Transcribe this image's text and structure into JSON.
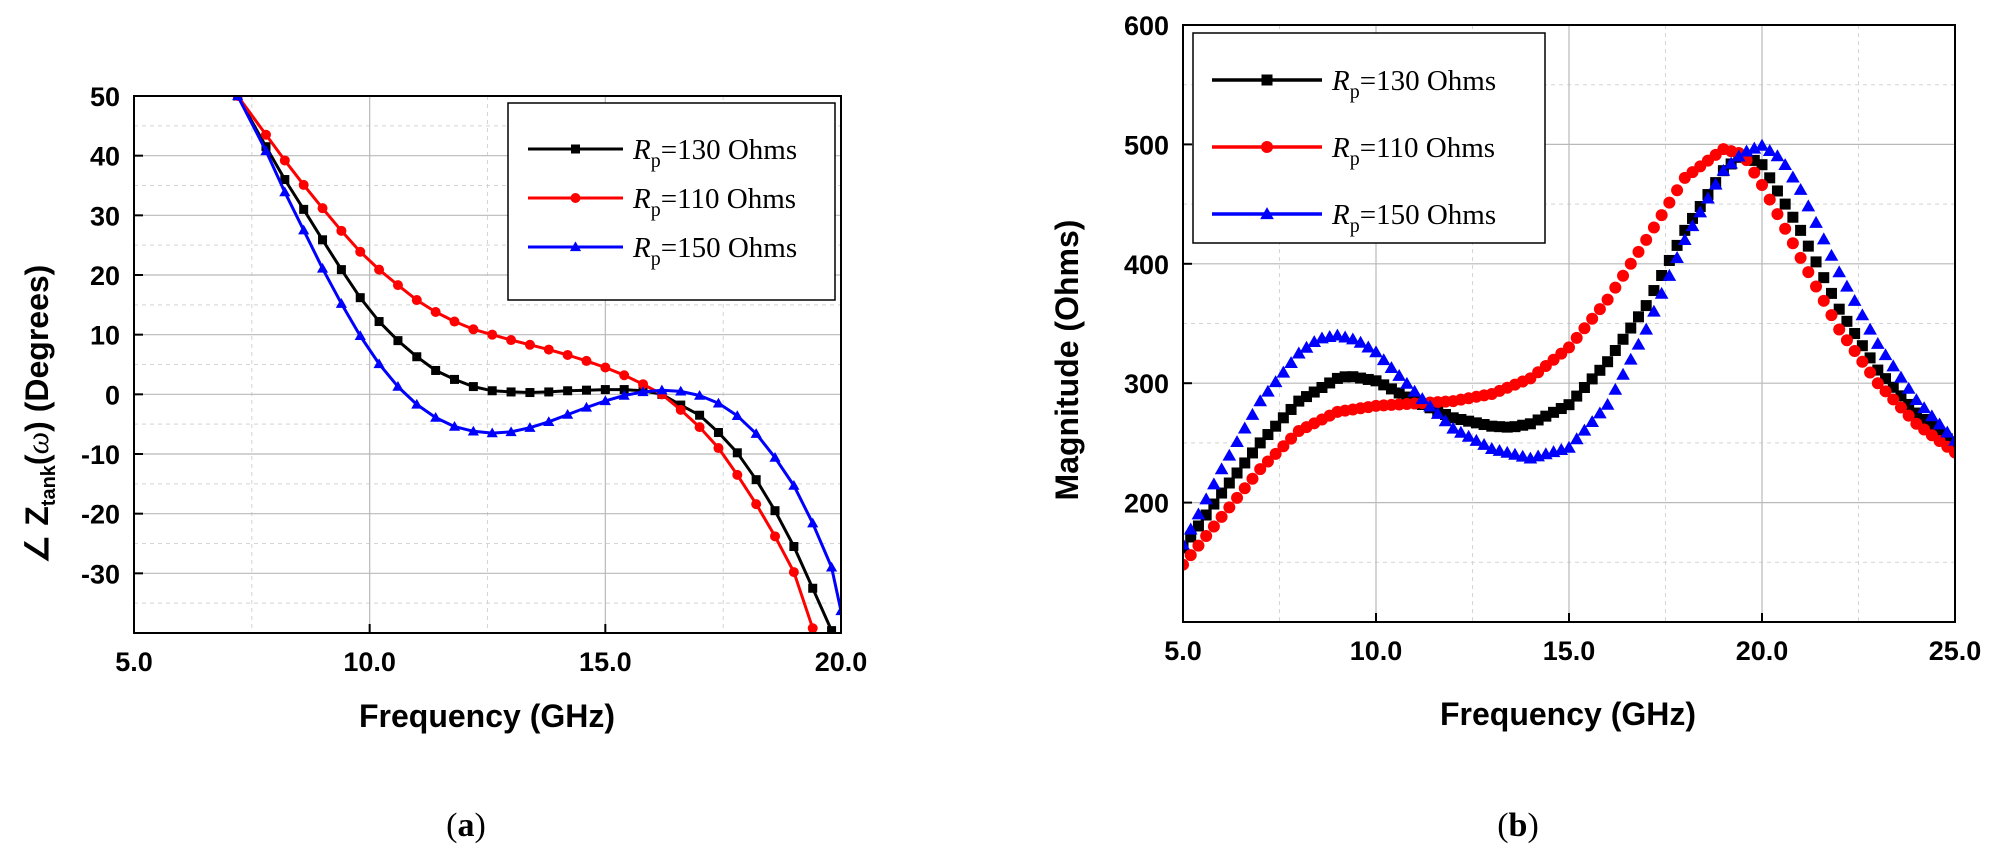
{
  "chart_data": [
    {
      "type": "line",
      "panel_label": "a",
      "xlabel": "Frequency (GHz)",
      "ylabel": {
        "prefix": "∠ Z",
        "sub": "tank",
        "paren_open": "(",
        "omega": "ω",
        "paren_close": ")",
        "suffix": " (Degrees)"
      },
      "xlim": [
        5.0,
        20.0
      ],
      "ylim": [
        -40,
        50
      ],
      "xticks": [
        5.0,
        10.0,
        15.0,
        20.0
      ],
      "xtick_labels": [
        "5.0",
        "10.0",
        "15.0",
        "20.0"
      ],
      "yticks": [
        -30,
        -20,
        -10,
        0,
        10,
        20,
        30,
        40,
        50
      ],
      "ytick_labels": [
        "-30",
        "-20",
        "-10",
        "0",
        "10",
        "20",
        "30",
        "40",
        "50"
      ],
      "grid": true,
      "legend_position": "top-right",
      "series": [
        {
          "name": "R_p=130 Ohms",
          "label_main": "R",
          "label_sub": "p",
          "label_rest": "=130 Ohms",
          "color": "#000000",
          "marker": "square",
          "x": [
            7.2,
            7.8,
            8.2,
            8.6,
            9.0,
            9.4,
            9.8,
            10.2,
            10.6,
            11.0,
            11.4,
            11.8,
            12.2,
            12.6,
            13.0,
            13.4,
            13.8,
            14.2,
            14.6,
            15.0,
            15.4,
            15.8,
            16.2,
            16.6,
            17.0,
            17.4,
            17.8,
            18.2,
            18.6,
            19.0,
            19.4,
            19.8
          ],
          "y": [
            50,
            41.5,
            36,
            31,
            25.9,
            20.9,
            16.2,
            12.2,
            9.0,
            6.3,
            4.0,
            2.5,
            1.3,
            0.6,
            0.4,
            0.3,
            0.4,
            0.6,
            0.7,
            0.8,
            0.8,
            0.6,
            0.0,
            -1.8,
            -3.5,
            -6.4,
            -9.8,
            -14.3,
            -19.5,
            -25.5,
            -32.5,
            -39.6
          ]
        },
        {
          "name": "R_p=110 Ohms",
          "label_main": "R",
          "label_sub": "p",
          "label_rest": "=110 Ohms",
          "color": "#ff0000",
          "marker": "circle",
          "x": [
            7.2,
            7.8,
            8.2,
            8.6,
            9.0,
            9.4,
            9.8,
            10.2,
            10.6,
            11.0,
            11.4,
            11.8,
            12.2,
            12.6,
            13.0,
            13.4,
            13.8,
            14.2,
            14.6,
            15.0,
            15.4,
            15.8,
            16.2,
            16.6,
            17.0,
            17.4,
            17.8,
            18.2,
            18.6,
            19.0,
            19.4
          ],
          "y": [
            50,
            43.5,
            39.2,
            35.1,
            31.2,
            27.4,
            23.9,
            20.9,
            18.3,
            15.8,
            13.8,
            12.2,
            10.9,
            10.0,
            9.1,
            8.3,
            7.5,
            6.6,
            5.6,
            4.5,
            3.2,
            1.7,
            0.0,
            -2.6,
            -5.5,
            -9.0,
            -13.5,
            -18.4,
            -23.8,
            -29.8,
            -39.2
          ]
        },
        {
          "name": "R_p=150 Ohms",
          "label_main": "R",
          "label_sub": "p",
          "label_rest": "=150 Ohms",
          "color": "#0000ff",
          "marker": "triangle",
          "x": [
            7.2,
            7.8,
            8.2,
            8.6,
            9.0,
            9.4,
            9.8,
            10.2,
            10.6,
            11.0,
            11.4,
            11.8,
            12.2,
            12.6,
            13.0,
            13.4,
            13.8,
            14.2,
            14.6,
            15.0,
            15.4,
            15.8,
            16.2,
            16.6,
            17.0,
            17.4,
            17.8,
            18.2,
            18.6,
            19.0,
            19.4,
            19.8,
            20.0
          ],
          "y": [
            50,
            40.8,
            33.9,
            27.5,
            21.1,
            15.2,
            9.8,
            5.1,
            1.3,
            -1.7,
            -3.9,
            -5.4,
            -6.2,
            -6.5,
            -6.3,
            -5.6,
            -4.6,
            -3.4,
            -2.2,
            -1.1,
            -0.2,
            0.4,
            0.7,
            0.5,
            -0.2,
            -1.5,
            -3.6,
            -6.6,
            -10.6,
            -15.3,
            -21.6,
            -29.0,
            -36.3
          ]
        }
      ]
    },
    {
      "type": "scatter",
      "panel_label": "b",
      "xlabel": "Frequency (GHz)",
      "ylabel": "Magnitude (Ohms)",
      "xlim": [
        5.0,
        25.0
      ],
      "ylim": [
        100,
        600
      ],
      "xticks": [
        5.0,
        10.0,
        15.0,
        20.0,
        25.0
      ],
      "xtick_labels": [
        "5.0",
        "10.0",
        "15.0",
        "20.0",
        "25.0"
      ],
      "yticks": [
        200,
        300,
        400,
        500,
        600
      ],
      "ytick_labels": [
        "200",
        "300",
        "400",
        "500",
        "600"
      ],
      "grid": true,
      "legend_position": "top-left",
      "series": [
        {
          "name": "R_p=130 Ohms",
          "label_main": "R",
          "label_sub": "p",
          "label_rest": "=130 Ohms",
          "color": "#000000",
          "marker": "square",
          "x": [
            5,
            6,
            7,
            8,
            9,
            9.3,
            10,
            11,
            12,
            13,
            13.5,
            14,
            15,
            16,
            17,
            18,
            19,
            19.5,
            20,
            21,
            22,
            23,
            24,
            25
          ],
          "y": [
            162,
            208,
            250,
            285,
            304,
            306,
            302,
            285,
            271,
            264,
            263,
            266,
            282,
            318,
            365,
            428,
            478,
            492,
            483,
            428,
            362,
            311,
            275,
            248
          ]
        },
        {
          "name": "R_p=110 Ohms",
          "label_main": "R",
          "label_sub": "p",
          "label_rest": "=110 Ohms",
          "color": "#ff0000",
          "marker": "circle",
          "x": [
            5,
            6,
            7,
            8,
            9,
            10,
            11,
            12,
            13,
            14,
            15,
            16,
            17,
            18,
            19,
            19.5,
            20,
            21,
            22,
            23,
            24,
            25
          ],
          "y": [
            148,
            188,
            228,
            260,
            276,
            281,
            283,
            285,
            291,
            304,
            330,
            370,
            420,
            472,
            496,
            492,
            466,
            405,
            345,
            300,
            266,
            242
          ]
        },
        {
          "name": "R_p=150 Ohms",
          "label_main": "R",
          "label_sub": "p",
          "label_rest": "=150 Ohms",
          "color": "#0000ff",
          "marker": "triangle",
          "x": [
            5,
            6,
            7,
            8,
            8.5,
            9,
            9.5,
            10,
            11,
            12,
            13,
            14,
            15,
            16,
            17,
            18,
            19,
            19.5,
            20,
            20.5,
            21,
            22,
            23,
            24,
            25
          ],
          "y": [
            165,
            228,
            285,
            325,
            337,
            340,
            336,
            326,
            293,
            262,
            245,
            237,
            246,
            282,
            345,
            420,
            478,
            493,
            499,
            488,
            462,
            393,
            333,
            286,
            252
          ]
        }
      ]
    }
  ]
}
